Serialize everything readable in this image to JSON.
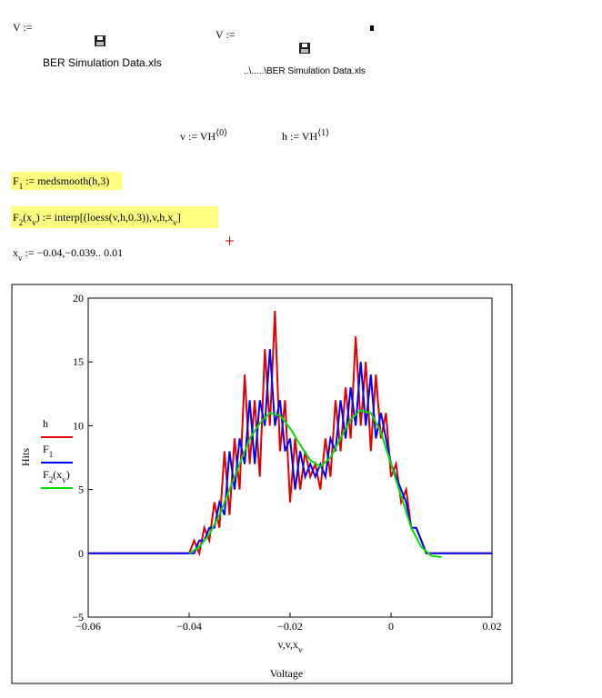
{
  "worksheet": {
    "assign1_lhs": "V :=",
    "assign1_file": "BER Simulation Data.xls",
    "assign2_lhs": "V :=",
    "assign2_file": "..\\.....\\BER Simulation Data.xls",
    "v_def": [
      {
        "text": "v := VH"
      },
      {
        "text": "⟨0⟩",
        "sup": true
      }
    ],
    "h_def": [
      {
        "text": "h := VH"
      },
      {
        "text": "⟨1⟩",
        "sup": true
      }
    ],
    "f1_def": [
      {
        "text": "F"
      },
      {
        "text": "1",
        "sub": true
      },
      {
        "text": " := medsmooth(h,3)"
      }
    ],
    "f2_def": [
      {
        "text": "F"
      },
      {
        "text": "2",
        "sub": true
      },
      {
        "text": "(x"
      },
      {
        "text": "v",
        "sub": true
      },
      {
        "text": ") := interp[(loess(v,h,0.3)),v,h,x"
      },
      {
        "text": "v",
        "sub": true
      },
      {
        "text": "]"
      }
    ],
    "xv_def": [
      {
        "text": "x"
      },
      {
        "text": "v",
        "sub": true
      },
      {
        "text": " := −0.04,−0.039.. 0.01"
      }
    ]
  },
  "chart_data": {
    "type": "line",
    "ylabel": "Hits",
    "xlabel": [
      {
        "text": "v,v,x"
      },
      {
        "text": "v",
        "sub": true
      }
    ],
    "xtitle": "Voltage",
    "xlim": [
      -0.06,
      0.02
    ],
    "ylim": [
      -5,
      20
    ],
    "xticks": [
      {
        "value": -0.06,
        "label": "−0.06"
      },
      {
        "value": -0.04,
        "label": "−0.04"
      },
      {
        "value": -0.02,
        "label": "−0.02"
      },
      0,
      0.02
    ],
    "yticks": [
      {
        "value": -5,
        "label": "−5"
      },
      0,
      5,
      10,
      15,
      20
    ],
    "grid": false,
    "legend": "left",
    "series": [
      {
        "name": [
          {
            "text": "h"
          }
        ],
        "color": "#e00000",
        "x": [
          -0.06,
          -0.059,
          -0.058,
          -0.057,
          -0.056,
          -0.055,
          -0.054,
          -0.053,
          -0.052,
          -0.051,
          -0.05,
          -0.049,
          -0.048,
          -0.047,
          -0.046,
          -0.045,
          -0.044,
          -0.043,
          -0.042,
          -0.041,
          -0.04,
          -0.039,
          -0.038,
          -0.037,
          -0.036,
          -0.035,
          -0.034,
          -0.033,
          -0.032,
          -0.031,
          -0.03,
          -0.029,
          -0.028,
          -0.027,
          -0.026,
          -0.025,
          -0.024,
          -0.023,
          -0.022,
          -0.021,
          -0.02,
          -0.019,
          -0.018,
          -0.017,
          -0.016,
          -0.015,
          -0.014,
          -0.013,
          -0.012,
          -0.011,
          -0.01,
          -0.009,
          -0.008,
          -0.007,
          -0.006,
          -0.005,
          -0.004,
          -0.003,
          -0.002,
          -0.001,
          0,
          0.001,
          0.002,
          0.003,
          0.004,
          0.005,
          0.006,
          0.007,
          0.008,
          0.009,
          0.01,
          0.011,
          0.012,
          0.013,
          0.014,
          0.015,
          0.016,
          0.017,
          0.018,
          0.019,
          0.02
        ],
        "values": [
          0,
          0,
          0,
          0,
          0,
          0,
          0,
          0,
          0,
          0,
          0,
          0,
          0,
          0,
          0,
          0,
          0,
          0,
          0,
          0,
          0,
          1,
          0,
          2,
          1,
          4,
          2,
          8,
          3,
          9,
          5,
          14,
          7,
          12,
          6,
          16,
          10,
          19,
          8,
          12,
          4,
          9,
          5,
          8,
          6,
          7,
          5,
          9,
          6,
          12,
          8,
          13,
          9,
          17,
          10,
          15,
          8,
          14,
          9,
          11,
          6,
          7,
          4,
          5,
          2,
          2,
          1,
          0,
          0,
          0,
          0,
          0,
          0,
          0,
          0,
          0,
          0,
          0,
          0,
          0,
          0
        ]
      },
      {
        "name": [
          {
            "text": "F"
          },
          {
            "text": "1",
            "sub": true
          }
        ],
        "color": "#0000ff",
        "x": [
          -0.06,
          -0.059,
          -0.058,
          -0.057,
          -0.056,
          -0.055,
          -0.054,
          -0.053,
          -0.052,
          -0.051,
          -0.05,
          -0.049,
          -0.048,
          -0.047,
          -0.046,
          -0.045,
          -0.044,
          -0.043,
          -0.042,
          -0.041,
          -0.04,
          -0.039,
          -0.038,
          -0.037,
          -0.036,
          -0.035,
          -0.034,
          -0.033,
          -0.032,
          -0.031,
          -0.03,
          -0.029,
          -0.028,
          -0.027,
          -0.026,
          -0.025,
          -0.024,
          -0.023,
          -0.022,
          -0.021,
          -0.02,
          -0.019,
          -0.018,
          -0.017,
          -0.016,
          -0.015,
          -0.014,
          -0.013,
          -0.012,
          -0.011,
          -0.01,
          -0.009,
          -0.008,
          -0.007,
          -0.006,
          -0.005,
          -0.004,
          -0.003,
          -0.002,
          -0.001,
          0,
          0.001,
          0.002,
          0.003,
          0.004,
          0.005,
          0.006,
          0.007,
          0.008,
          0.009,
          0.01,
          0.011,
          0.012,
          0.013,
          0.014,
          0.015,
          0.016,
          0.017,
          0.018,
          0.019,
          0.02
        ],
        "values": [
          0,
          0,
          0,
          0,
          0,
          0,
          0,
          0,
          0,
          0,
          0,
          0,
          0,
          0,
          0,
          0,
          0,
          0,
          0,
          0,
          0,
          0,
          1,
          1,
          2,
          2,
          4,
          3,
          8,
          5,
          9,
          7,
          12,
          7,
          12,
          10,
          16,
          10,
          12,
          8,
          9,
          5,
          8,
          6,
          7,
          6,
          7,
          6,
          9,
          8,
          12,
          9,
          13,
          10,
          15,
          10,
          14,
          9,
          11,
          9,
          7,
          6,
          5,
          4,
          2,
          2,
          1,
          0,
          0,
          0,
          0,
          0,
          0,
          0,
          0,
          0,
          0,
          0,
          0,
          0,
          0
        ]
      },
      {
        "name": [
          {
            "text": "F"
          },
          {
            "text": "2",
            "sub": true
          },
          {
            "text": "(x"
          },
          {
            "text": "v",
            "sub": true
          },
          {
            "text": ")"
          }
        ],
        "color": "#00e000",
        "x": [
          -0.04,
          -0.038,
          -0.036,
          -0.034,
          -0.032,
          -0.03,
          -0.028,
          -0.026,
          -0.024,
          -0.022,
          -0.02,
          -0.018,
          -0.016,
          -0.014,
          -0.012,
          -0.01,
          -0.008,
          -0.006,
          -0.004,
          -0.002,
          0,
          0.002,
          0.004,
          0.006,
          0.008,
          0.01
        ],
        "values": [
          0,
          0.5,
          1.5,
          3,
          5,
          7,
          9,
          10.2,
          11,
          10.8,
          9.8,
          8.5,
          7.3,
          6.8,
          7.5,
          9,
          10.5,
          11.2,
          11,
          9.5,
          7,
          4.5,
          2,
          0.5,
          -0.2,
          -0.3
        ]
      }
    ]
  }
}
